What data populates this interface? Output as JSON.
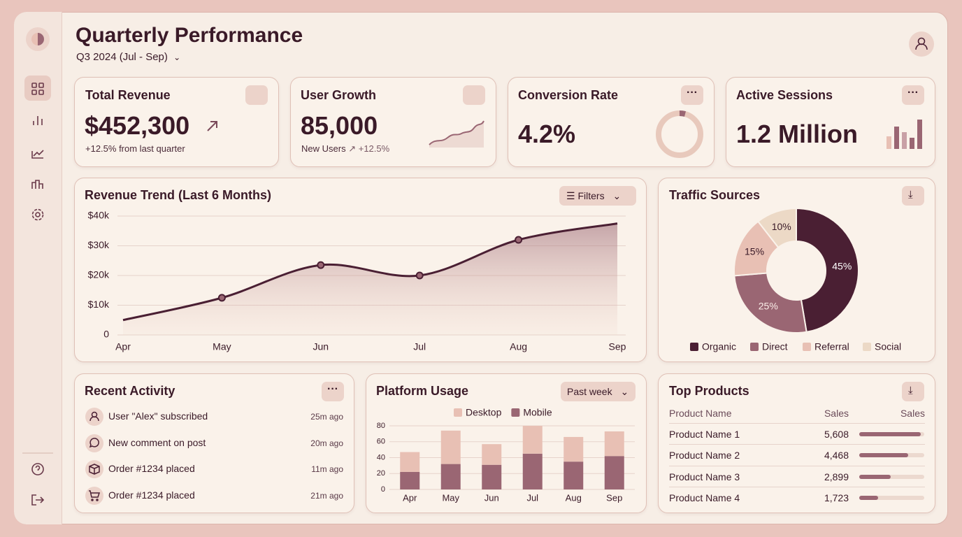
{
  "header": {
    "title": "Quarterly Performance",
    "period": "Q3 2024 (Jul - Sep)"
  },
  "kpis": [
    {
      "title": "Total Revenue",
      "value": "$452,300",
      "note": "+12.5% from last quarter"
    },
    {
      "title": "User Growth",
      "value": "85,000",
      "note": "New Users",
      "change": "+12.5%"
    },
    {
      "title": "Conversion Rate",
      "value": "4.2%"
    },
    {
      "title": "Active Sessions",
      "value": "1.2 Million"
    }
  ],
  "chart_data": [
    {
      "type": "line",
      "title": "Revenue Trend (Last 6 Months)",
      "button": "Filters",
      "categories": [
        "Apr",
        "May",
        "Jun",
        "Jul",
        "Aug",
        "Sep"
      ],
      "values": [
        5000,
        12500,
        23500,
        20000,
        32000,
        37500
      ],
      "color": "#4a1f33",
      "ylim": [
        0,
        40000
      ],
      "yticks": [
        0,
        {
          "value": 10000,
          "label": "$10k"
        },
        {
          "value": 20000,
          "label": "$20k"
        },
        {
          "value": 30000,
          "label": "$30k"
        },
        {
          "value": 40000,
          "label": "$40k"
        }
      ],
      "grid": true
    },
    {
      "type": "pie",
      "title": "Traffic Sources",
      "categories": [
        "Organic",
        "Direct",
        "Referral",
        "Social"
      ],
      "values": [
        45,
        25,
        15,
        10
      ],
      "value_labels": [
        "45%",
        "25%",
        "15%",
        "10%"
      ],
      "colors": [
        "#4a1f33",
        "#9a6673",
        "#e8c0b4",
        "#ecd9c6"
      ]
    },
    {
      "type": "stacked_bar",
      "title": "Platform Usage",
      "button": "Past week",
      "categories": [
        "Apr",
        "May",
        "Jun",
        "Jul",
        "Aug",
        "Sep"
      ],
      "series": [
        {
          "name": "Desktop",
          "color": "#e8c0b4",
          "values": [
            25,
            42,
            26,
            35,
            31,
            31
          ]
        },
        {
          "name": "Mobile",
          "color": "#9a6673",
          "values": [
            22,
            32,
            31,
            45,
            35,
            42
          ]
        }
      ],
      "ylim": [
        0,
        80
      ],
      "yticks": [
        0,
        20,
        40,
        60,
        80
      ],
      "grid": true
    }
  ],
  "recent_activity": {
    "title": "Recent Activity",
    "items": [
      {
        "text": "User \"Alex\" subscribed",
        "time": "25m ago"
      },
      {
        "text": "New comment on post",
        "time": "20m ago"
      },
      {
        "text": "Order #1234 placed",
        "time": "11m ago"
      },
      {
        "text": "Order #1234 placed",
        "time": "21m ago"
      }
    ]
  },
  "top_products": {
    "title": "Top Products",
    "columns": [
      "Product Name",
      "Sales",
      "Sales"
    ],
    "rows": [
      {
        "name": "Product Name 1",
        "sales": 5608,
        "sales_label": "5,608"
      },
      {
        "name": "Product Name 2",
        "sales": 4468,
        "sales_label": "4,468"
      },
      {
        "name": "Product Name 3",
        "sales": 2899,
        "sales_label": "2,899"
      },
      {
        "name": "Product Name 4",
        "sales": 1723,
        "sales_label": "1,723"
      }
    ]
  }
}
